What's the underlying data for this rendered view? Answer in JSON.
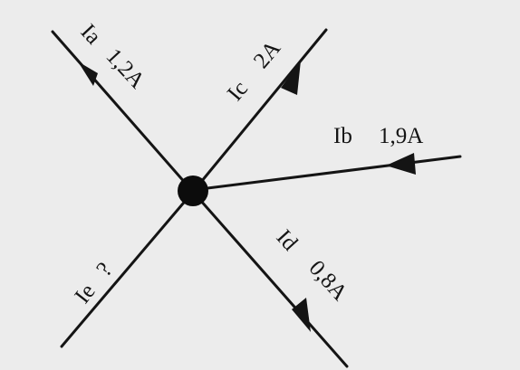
{
  "currents": {
    "a": {
      "name": "Ia",
      "value": "1,2A"
    },
    "b": {
      "name": "Ib",
      "value": "1,9A"
    },
    "c": {
      "name": "Ic",
      "value": "2A"
    },
    "d": {
      "name": "Id",
      "value": "0,8A"
    },
    "e": {
      "name": "Ie",
      "value": "?"
    }
  },
  "colors": {
    "background": "#ececec",
    "ink": "#141414"
  }
}
